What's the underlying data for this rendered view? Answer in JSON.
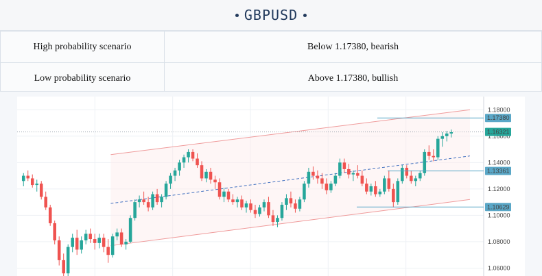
{
  "header": {
    "title": "GBPUSD"
  },
  "scenarios": [
    {
      "label": "High probability scenario",
      "value": "Below 1.17380, bearish"
    },
    {
      "label": "Low probability scenario",
      "value": "Above 1.17380, bullish"
    }
  ],
  "colors": {
    "up": "#26a69a",
    "down": "#ef5350",
    "level": "#5aa7c7",
    "current": "#26a69a",
    "channel": "#ef9a9a",
    "midline": "#3f6fbf"
  },
  "chart_data": {
    "type": "candlestick",
    "title": "",
    "xlabel": "",
    "ylabel": "",
    "ylim": [
      1.054,
      1.19
    ],
    "y_ticks": [
      "1.18000",
      "1.16000",
      "1.14000",
      "1.12000",
      "1.10000",
      "1.08000",
      "1.06000"
    ],
    "y_tick_values": [
      1.18,
      1.16,
      1.14,
      1.12,
      1.1,
      1.08,
      1.06
    ],
    "level_tags": [
      {
        "label": "1.17380",
        "value": 1.1738
      },
      {
        "label": "1.16321",
        "value": 1.16321
      },
      {
        "label": "1.13361",
        "value": 1.13361
      },
      {
        "label": "1.10629",
        "value": 1.10629
      }
    ],
    "candles": [
      [
        1.126,
        1.132,
        1.122,
        1.13
      ],
      [
        1.13,
        1.134,
        1.126,
        1.128
      ],
      [
        1.128,
        1.131,
        1.121,
        1.123
      ],
      [
        1.123,
        1.127,
        1.118,
        1.124
      ],
      [
        1.124,
        1.126,
        1.112,
        1.114
      ],
      [
        1.114,
        1.118,
        1.104,
        1.106
      ],
      [
        1.106,
        1.108,
        1.092,
        1.094
      ],
      [
        1.094,
        1.096,
        1.078,
        1.081
      ],
      [
        1.081,
        1.084,
        1.062,
        1.066
      ],
      [
        1.066,
        1.071,
        1.05,
        1.056
      ],
      [
        1.056,
        1.078,
        1.054,
        1.076
      ],
      [
        1.076,
        1.086,
        1.072,
        1.083
      ],
      [
        1.083,
        1.089,
        1.07,
        1.074
      ],
      [
        1.074,
        1.084,
        1.071,
        1.081
      ],
      [
        1.081,
        1.089,
        1.078,
        1.086
      ],
      [
        1.086,
        1.09,
        1.079,
        1.082
      ],
      [
        1.082,
        1.086,
        1.074,
        1.079
      ],
      [
        1.079,
        1.086,
        1.075,
        1.083
      ],
      [
        1.083,
        1.086,
        1.072,
        1.076
      ],
      [
        1.076,
        1.082,
        1.064,
        1.07
      ],
      [
        1.07,
        1.086,
        1.068,
        1.084
      ],
      [
        1.084,
        1.09,
        1.081,
        1.087
      ],
      [
        1.087,
        1.09,
        1.076,
        1.078
      ],
      [
        1.078,
        1.082,
        1.074,
        1.08
      ],
      [
        1.08,
        1.1,
        1.079,
        1.098
      ],
      [
        1.098,
        1.112,
        1.096,
        1.11
      ],
      [
        1.11,
        1.115,
        1.106,
        1.112
      ],
      [
        1.112,
        1.118,
        1.108,
        1.11
      ],
      [
        1.11,
        1.114,
        1.103,
        1.106
      ],
      [
        1.106,
        1.118,
        1.104,
        1.116
      ],
      [
        1.116,
        1.12,
        1.108,
        1.11
      ],
      [
        1.11,
        1.116,
        1.106,
        1.114
      ],
      [
        1.114,
        1.126,
        1.112,
        1.124
      ],
      [
        1.124,
        1.132,
        1.12,
        1.13
      ],
      [
        1.13,
        1.136,
        1.126,
        1.134
      ],
      [
        1.134,
        1.142,
        1.13,
        1.14
      ],
      [
        1.14,
        1.146,
        1.136,
        1.144
      ],
      [
        1.144,
        1.15,
        1.14,
        1.148
      ],
      [
        1.148,
        1.15,
        1.141,
        1.143
      ],
      [
        1.143,
        1.147,
        1.136,
        1.138
      ],
      [
        1.138,
        1.141,
        1.126,
        1.128
      ],
      [
        1.128,
        1.135,
        1.125,
        1.133
      ],
      [
        1.133,
        1.136,
        1.124,
        1.127
      ],
      [
        1.127,
        1.13,
        1.12,
        1.125
      ],
      [
        1.125,
        1.128,
        1.112,
        1.114
      ],
      [
        1.114,
        1.121,
        1.11,
        1.118
      ],
      [
        1.118,
        1.12,
        1.11,
        1.112
      ],
      [
        1.112,
        1.116,
        1.108,
        1.11
      ],
      [
        1.11,
        1.114,
        1.106,
        1.112
      ],
      [
        1.112,
        1.115,
        1.104,
        1.106
      ],
      [
        1.106,
        1.111,
        1.102,
        1.109
      ],
      [
        1.109,
        1.112,
        1.102,
        1.104
      ],
      [
        1.104,
        1.108,
        1.098,
        1.101
      ],
      [
        1.101,
        1.108,
        1.099,
        1.106
      ],
      [
        1.106,
        1.112,
        1.103,
        1.11
      ],
      [
        1.11,
        1.114,
        1.098,
        1.1
      ],
      [
        1.1,
        1.104,
        1.092,
        1.095
      ],
      [
        1.095,
        1.1,
        1.091,
        1.098
      ],
      [
        1.098,
        1.11,
        1.096,
        1.108
      ],
      [
        1.108,
        1.116,
        1.104,
        1.113
      ],
      [
        1.113,
        1.118,
        1.106,
        1.109
      ],
      [
        1.109,
        1.112,
        1.102,
        1.105
      ],
      [
        1.105,
        1.114,
        1.103,
        1.112
      ],
      [
        1.112,
        1.126,
        1.11,
        1.124
      ],
      [
        1.124,
        1.136,
        1.121,
        1.133
      ],
      [
        1.133,
        1.137,
        1.127,
        1.13
      ],
      [
        1.13,
        1.134,
        1.124,
        1.128
      ],
      [
        1.128,
        1.132,
        1.12,
        1.124
      ],
      [
        1.124,
        1.128,
        1.116,
        1.119
      ],
      [
        1.119,
        1.126,
        1.117,
        1.124
      ],
      [
        1.124,
        1.132,
        1.122,
        1.13
      ],
      [
        1.13,
        1.143,
        1.128,
        1.14
      ],
      [
        1.14,
        1.143,
        1.132,
        1.135
      ],
      [
        1.135,
        1.139,
        1.128,
        1.131
      ],
      [
        1.131,
        1.134,
        1.126,
        1.132
      ],
      [
        1.132,
        1.138,
        1.128,
        1.13
      ],
      [
        1.13,
        1.134,
        1.122,
        1.124
      ],
      [
        1.124,
        1.128,
        1.116,
        1.118
      ],
      [
        1.118,
        1.124,
        1.115,
        1.122
      ],
      [
        1.122,
        1.126,
        1.114,
        1.116
      ],
      [
        1.116,
        1.12,
        1.114,
        1.118
      ],
      [
        1.118,
        1.13,
        1.116,
        1.128
      ],
      [
        1.128,
        1.134,
        1.118,
        1.12
      ],
      [
        1.12,
        1.124,
        1.106,
        1.11
      ],
      [
        1.11,
        1.128,
        1.108,
        1.126
      ],
      [
        1.126,
        1.138,
        1.124,
        1.136
      ],
      [
        1.136,
        1.138,
        1.128,
        1.13
      ],
      [
        1.13,
        1.134,
        1.124,
        1.126
      ],
      [
        1.126,
        1.13,
        1.122,
        1.128
      ],
      [
        1.128,
        1.134,
        1.126,
        1.132
      ],
      [
        1.132,
        1.15,
        1.13,
        1.148
      ],
      [
        1.148,
        1.153,
        1.142,
        1.145
      ],
      [
        1.145,
        1.15,
        1.141,
        1.144
      ],
      [
        1.144,
        1.16,
        1.142,
        1.158
      ],
      [
        1.158,
        1.163,
        1.152,
        1.16
      ],
      [
        1.16,
        1.164,
        1.156,
        1.162
      ],
      [
        1.162,
        1.165,
        1.159,
        1.163
      ]
    ],
    "channel": {
      "upper": [
        [
          0.23,
          1.146
        ],
        [
          1.0,
          1.18
        ]
      ],
      "mid": [
        [
          0.23,
          1.109
        ],
        [
          1.0,
          1.145
        ]
      ],
      "lower": [
        [
          0.23,
          1.077
        ],
        [
          1.0,
          1.112
        ]
      ]
    }
  }
}
